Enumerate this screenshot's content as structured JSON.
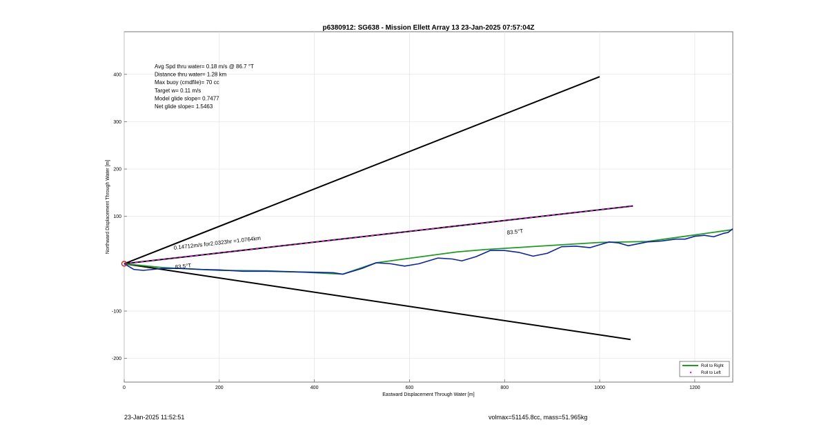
{
  "chart_data": {
    "type": "line",
    "title": "p6380912: SG638 - Mission Ellett Array 13 23-Jan-2025 07:57:04Z",
    "xlabel": "Eastward Displacement Through Water [m]",
    "ylabel": "Northward Displacement Through Water [m]",
    "xlim": [
      0,
      1280
    ],
    "ylim": [
      -250,
      490
    ],
    "xticks": [
      0,
      200,
      400,
      600,
      800,
      1000,
      1200
    ],
    "yticks": [
      -200,
      -100,
      100,
      200,
      300,
      400
    ],
    "grid": true,
    "legend_position": "bottom-right",
    "stats_lines": [
      "Avg Spd thru water=  0.18 m/s @  86.7 °T",
      "Distance thru water=  1.28 km",
      "Max buoy (cmdfile)= 70 cc",
      "Target w= 0.11 m/s",
      "Model glide slope= 0.7477",
      "Net glide slope= 1.5463"
    ],
    "annotations": {
      "drift_label": "0.14712m/s for2.0323hr =1.0764km",
      "heading_label_left": "83.5°T",
      "heading_label_right": "83.5°T"
    },
    "legend": [
      {
        "label": "Roll to Right",
        "color": "#1a9e1a",
        "style": "line"
      },
      {
        "label": "Roll to Left",
        "color": "#ff00ff",
        "style": "dot"
      }
    ],
    "cone_lines": [
      {
        "x": [
          0,
          1000
        ],
        "y": [
          0,
          395
        ],
        "color": "#000000"
      },
      {
        "x": [
          0,
          1065
        ],
        "y": [
          0,
          -160
        ],
        "color": "#000000"
      }
    ],
    "drift_line": {
      "x": [
        0,
        1070
      ],
      "y": [
        0,
        122
      ],
      "color": "#000000",
      "dash_color": "#ff00ff"
    },
    "series": [
      {
        "color": "#1a9e1a",
        "x": [
          0,
          80,
          200,
          300,
          380,
          460,
          530,
          700,
          760,
          1000,
          1100,
          1180,
          1280
        ],
        "y": [
          0,
          -8,
          -14,
          -15,
          -18,
          -22,
          2,
          25,
          30,
          45,
          47,
          58,
          72
        ]
      },
      {
        "color": "#0a1fb4",
        "x": [
          0,
          10,
          20,
          40,
          60,
          80,
          120,
          160,
          200,
          250,
          300,
          350,
          400,
          440,
          460,
          480,
          500,
          520,
          530,
          560,
          590,
          620,
          660,
          690,
          710,
          740,
          770,
          800,
          830,
          860,
          890,
          920,
          950,
          980,
          1000,
          1020,
          1040,
          1060,
          1080,
          1100,
          1130,
          1160,
          1180,
          1200,
          1220,
          1240,
          1260,
          1270,
          1280
        ],
        "y": [
          0,
          -6,
          -12,
          -14,
          -12,
          -10,
          -10,
          -12,
          -13,
          -16,
          -16,
          -17,
          -18,
          -19,
          -22,
          -16,
          -10,
          -2,
          2,
          0,
          -5,
          0,
          12,
          10,
          6,
          15,
          28,
          28,
          24,
          16,
          22,
          36,
          37,
          34,
          40,
          46,
          44,
          38,
          42,
          46,
          48,
          52,
          52,
          58,
          60,
          57,
          64,
          66,
          74
        ]
      }
    ]
  },
  "footer": {
    "timestamp": "23-Jan-2025 11:52:51",
    "vol_mass": "volmax=51145.8cc, mass=51.965kg"
  }
}
